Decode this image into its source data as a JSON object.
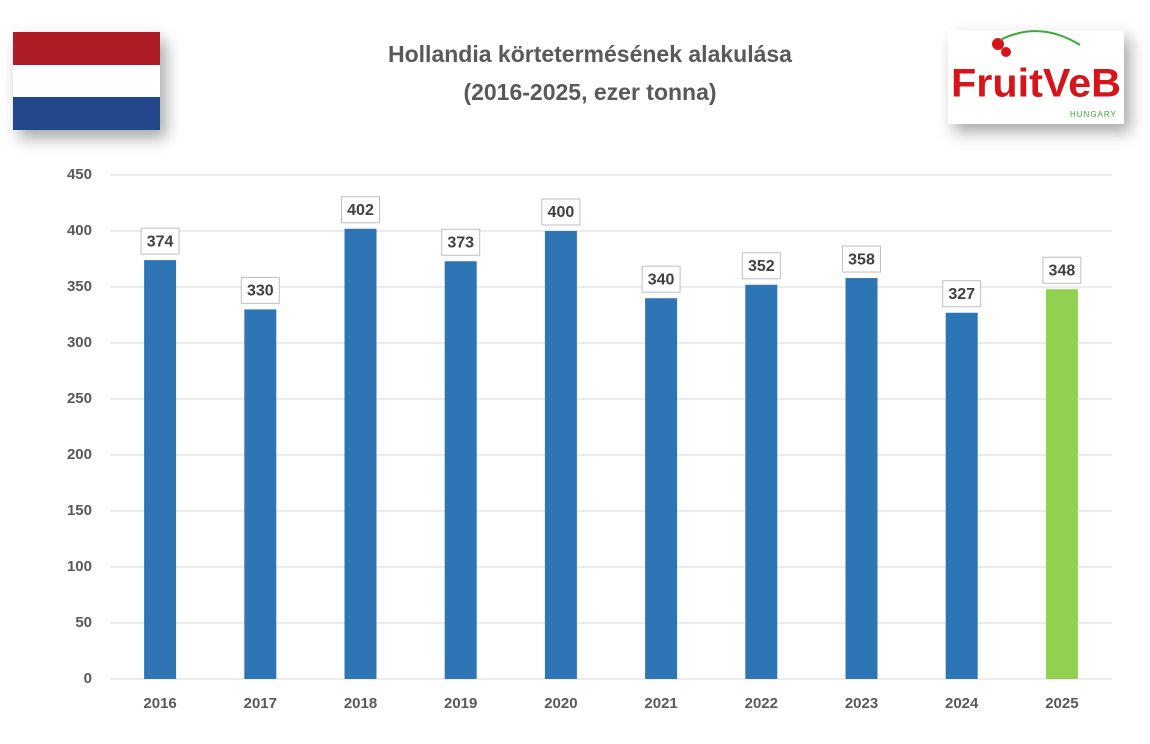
{
  "chart_data": {
    "type": "bar",
    "title": "Hollandia körtetermésének alakulása",
    "subtitle": "(2016-2025, ezer tonna)",
    "categories": [
      "2016",
      "2017",
      "2018",
      "2019",
      "2020",
      "2021",
      "2022",
      "2023",
      "2024",
      "2025"
    ],
    "values": [
      374,
      330,
      402,
      373,
      400,
      340,
      352,
      358,
      327,
      348
    ],
    "colors": [
      "#2e75b6",
      "#2e75b6",
      "#2e75b6",
      "#2e75b6",
      "#2e75b6",
      "#2e75b6",
      "#2e75b6",
      "#2e75b6",
      "#2e75b6",
      "#92d050"
    ],
    "ylim": [
      0,
      450
    ],
    "yticks": [
      0,
      50,
      100,
      150,
      200,
      250,
      300,
      350,
      400,
      450
    ],
    "grid": true
  },
  "logo": {
    "name": "FruitVeB",
    "tagline": "HUNGARY"
  }
}
